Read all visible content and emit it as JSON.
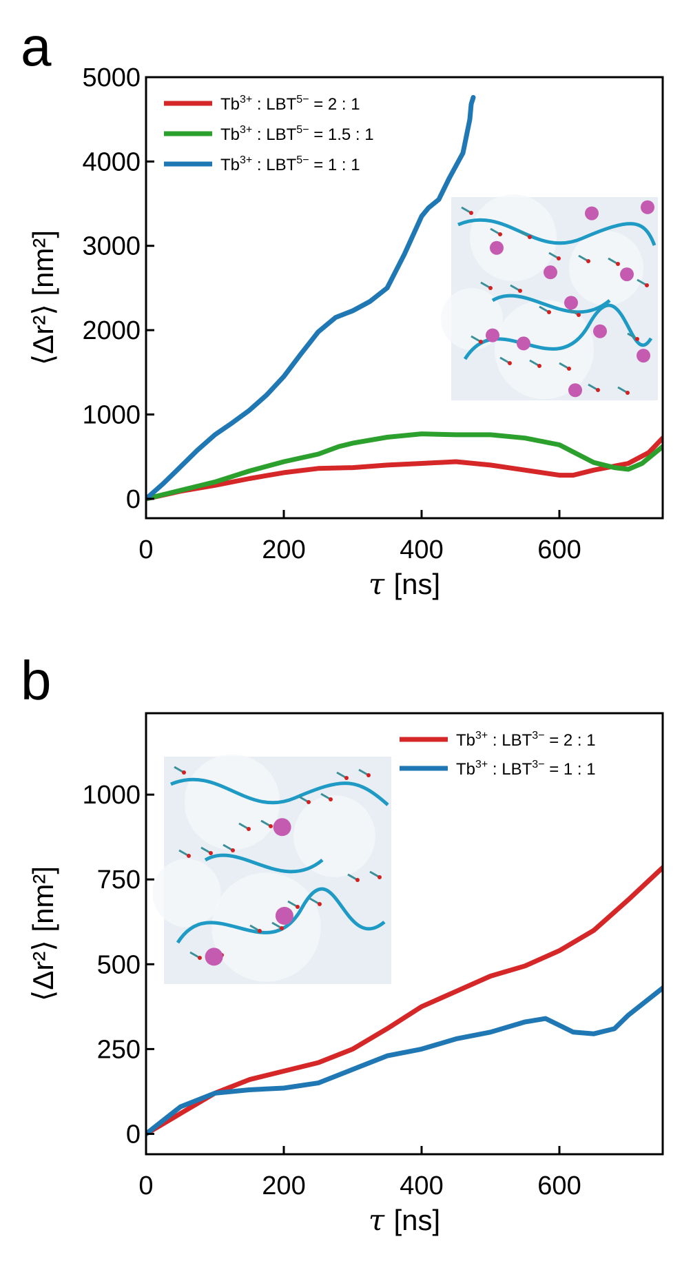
{
  "chart_data": [
    {
      "panel_label": "a",
      "type": "line",
      "xlabel_symbol": "τ",
      "xlabel_unit": "[ns]",
      "ylabel": "⟨Δr²⟩ [nm²]",
      "xlim": [
        0,
        750
      ],
      "ylim": [
        -230,
        5000
      ],
      "xticks": [
        0,
        200,
        400,
        600
      ],
      "yticks": [
        0,
        1000,
        2000,
        3000,
        4000,
        5000
      ],
      "legend_position": "top-left",
      "inset": "molecular-snapshot-with-terbium-ions",
      "series": [
        {
          "name": "Tb³⁺ : LBT⁵⁻ = 2 : 1",
          "name_parts": {
            "ion": "Tb",
            "ion_charge": "3+",
            "sep": " : LBT",
            "ligand_charge": "5−",
            "ratio": " = 2 : 1"
          },
          "color": "#d62728",
          "x": [
            0,
            50,
            100,
            150,
            200,
            250,
            300,
            350,
            400,
            450,
            500,
            550,
            600,
            620,
            650,
            700,
            730,
            750
          ],
          "y": [
            0,
            90,
            160,
            240,
            310,
            360,
            370,
            400,
            420,
            440,
            400,
            340,
            280,
            280,
            340,
            420,
            550,
            720
          ]
        },
        {
          "name": "Tb³⁺ : LBT⁵⁻ = 1.5 : 1",
          "name_parts": {
            "ion": "Tb",
            "ion_charge": "3+",
            "sep": " : LBT",
            "ligand_charge": "5−",
            "ratio": " = 1.5 : 1"
          },
          "color": "#2ca02c",
          "x": [
            0,
            50,
            100,
            150,
            200,
            250,
            280,
            300,
            350,
            400,
            450,
            500,
            550,
            600,
            650,
            680,
            700,
            720,
            750
          ],
          "y": [
            0,
            100,
            200,
            330,
            440,
            530,
            620,
            660,
            730,
            770,
            760,
            760,
            720,
            640,
            430,
            370,
            350,
            420,
            620
          ]
        },
        {
          "name": "Tb³⁺ : LBT⁵⁻ = 1 : 1",
          "name_parts": {
            "ion": "Tb",
            "ion_charge": "3+",
            "sep": " : LBT",
            "ligand_charge": "5−",
            "ratio": " = 1 : 1"
          },
          "color": "#1f77b4",
          "x": [
            0,
            25,
            50,
            75,
            100,
            125,
            150,
            175,
            200,
            225,
            250,
            275,
            300,
            325,
            350,
            375,
            400,
            410,
            425,
            440,
            450,
            460,
            465,
            470,
            472,
            475
          ],
          "y": [
            0,
            180,
            380,
            580,
            760,
            900,
            1050,
            1230,
            1450,
            1720,
            1980,
            2150,
            2230,
            2340,
            2500,
            2900,
            3350,
            3450,
            3550,
            3800,
            3950,
            4100,
            4300,
            4500,
            4680,
            4760
          ]
        }
      ]
    },
    {
      "panel_label": "b",
      "type": "line",
      "xlabel_symbol": "τ",
      "xlabel_unit": "[ns]",
      "ylabel": "⟨Δr²⟩ [nm²]",
      "xlim": [
        0,
        750
      ],
      "ylim": [
        -60,
        1240
      ],
      "xticks": [
        0,
        200,
        400,
        600
      ],
      "yticks": [
        0,
        250,
        500,
        750,
        1000
      ],
      "legend_position": "top-right",
      "inset": "molecular-snapshot-with-terbium-ions",
      "series": [
        {
          "name": "Tb³⁺ : LBT³⁻ = 2 : 1",
          "name_parts": {
            "ion": "Tb",
            "ion_charge": "3+",
            "sep": " : LBT",
            "ligand_charge": "3−",
            "ratio": " = 2 : 1"
          },
          "color": "#d62728",
          "x": [
            0,
            50,
            100,
            150,
            200,
            250,
            300,
            350,
            400,
            450,
            500,
            550,
            600,
            650,
            700,
            750
          ],
          "y": [
            0,
            60,
            120,
            160,
            185,
            210,
            250,
            310,
            375,
            420,
            465,
            495,
            540,
            600,
            690,
            785
          ]
        },
        {
          "name": "Tb³⁺ : LBT³⁻ = 1 : 1",
          "name_parts": {
            "ion": "Tb",
            "ion_charge": "3+",
            "sep": " : LBT",
            "ligand_charge": "3−",
            "ratio": " = 1 : 1"
          },
          "color": "#1f77b4",
          "x": [
            0,
            50,
            100,
            150,
            200,
            250,
            300,
            350,
            400,
            450,
            500,
            550,
            580,
            600,
            620,
            650,
            680,
            700,
            750
          ],
          "y": [
            0,
            80,
            120,
            130,
            135,
            150,
            190,
            230,
            250,
            280,
            300,
            330,
            340,
            320,
            300,
            295,
            310,
            350,
            430
          ]
        }
      ]
    }
  ]
}
